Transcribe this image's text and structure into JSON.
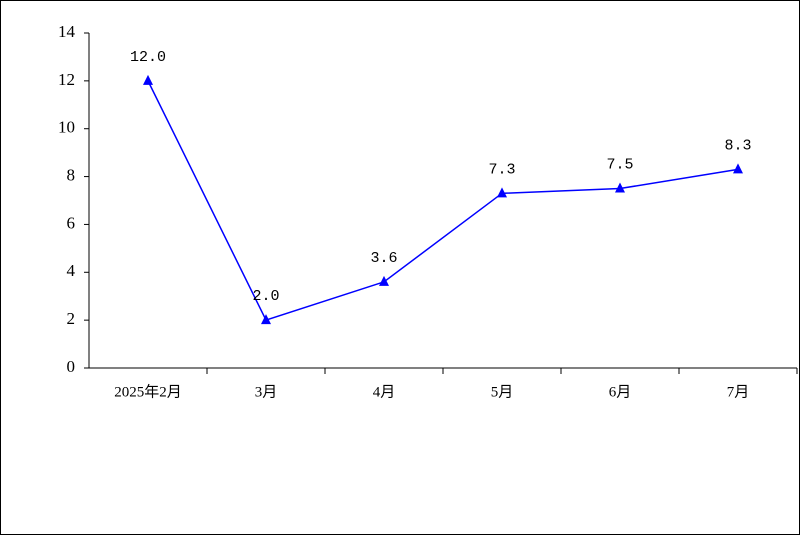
{
  "chart_data": {
    "type": "line",
    "categories": [
      "2025年2月",
      "3月",
      "4月",
      "5月",
      "6月",
      "7月"
    ],
    "series": [
      {
        "color": "#0000ff",
        "values": [
          12.0,
          2.0,
          3.6,
          7.3,
          7.5,
          8.3
        ],
        "value_labels": [
          "12.0",
          "2.0",
          "3.6",
          "7.3",
          "7.5",
          "8.3"
        ]
      }
    ],
    "ylim": [
      0,
      14
    ],
    "yticks": [
      0,
      2,
      4,
      6,
      8,
      10,
      12,
      14
    ]
  }
}
